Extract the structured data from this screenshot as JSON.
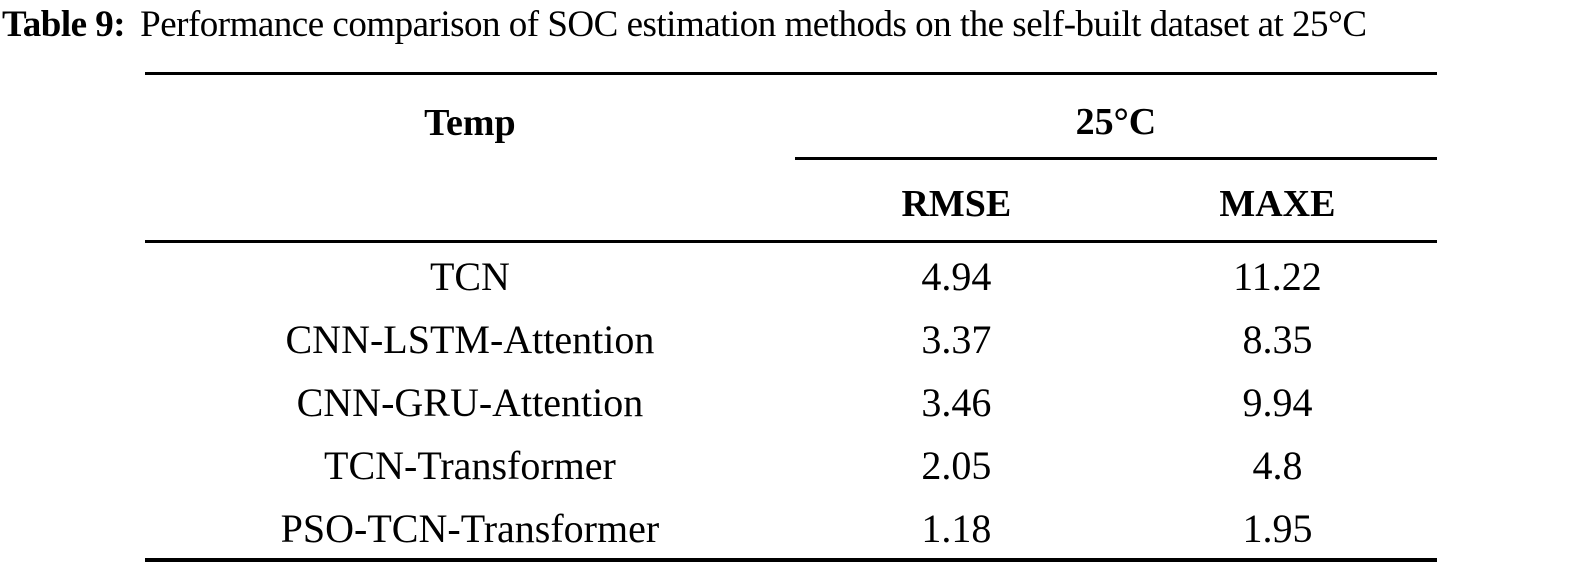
{
  "caption": {
    "label": "Table 9:",
    "text": "Performance comparison of SOC estimation methods on the self-built dataset at 25°C"
  },
  "table": {
    "temp_header": "Temp",
    "group_header": "25°C",
    "rmse_header": "RMSE",
    "maxe_header": "MAXE",
    "rows": [
      {
        "method": "TCN",
        "rmse": "4.94",
        "maxe": "11.22"
      },
      {
        "method": "CNN-LSTM-Attention",
        "rmse": "3.37",
        "maxe": "8.35"
      },
      {
        "method": "CNN-GRU-Attention",
        "rmse": "3.46",
        "maxe": "9.94"
      },
      {
        "method": "TCN-Transformer",
        "rmse": "2.05",
        "maxe": "4.8"
      },
      {
        "method": "PSO-TCN-Transformer",
        "rmse": "1.18",
        "maxe": "1.95"
      }
    ]
  },
  "colors": {
    "text": "#000000",
    "background": "#ffffff",
    "rule": "#000000"
  },
  "chart_data": {
    "type": "table",
    "title": "Table 9: Performance comparison of SOC estimation methods on the self-built dataset at 25°C",
    "columns": [
      "Temp",
      "25°C RMSE",
      "25°C MAXE"
    ],
    "rows": [
      [
        "TCN",
        4.94,
        11.22
      ],
      [
        "CNN-LSTM-Attention",
        3.37,
        8.35
      ],
      [
        "CNN-GRU-Attention",
        3.46,
        9.94
      ],
      [
        "TCN-Transformer",
        2.05,
        4.8
      ],
      [
        "PSO-TCN-Transformer",
        1.18,
        1.95
      ]
    ]
  }
}
